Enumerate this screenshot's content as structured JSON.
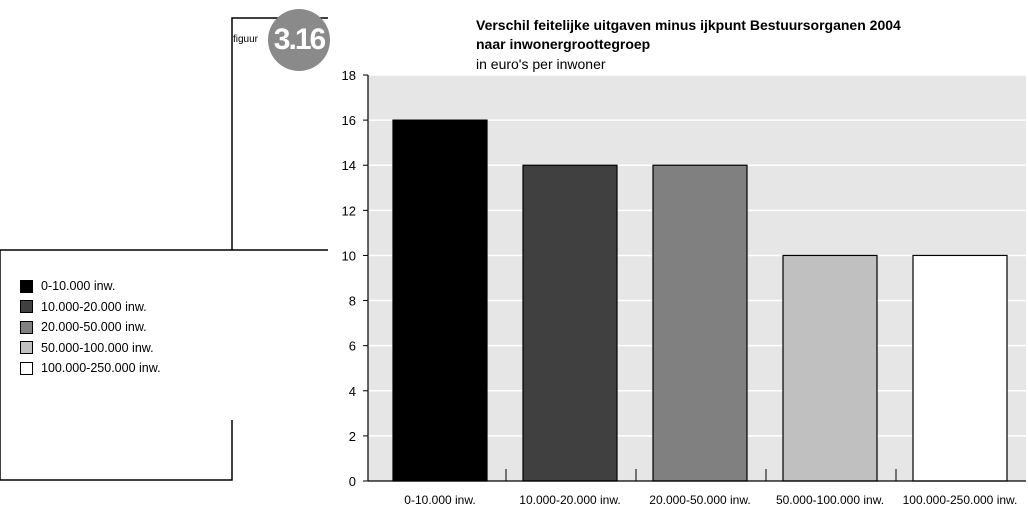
{
  "figure": {
    "label": "figuur",
    "number": "3.16",
    "title_line1": "Verschil feitelijke uitgaven minus ijkpunt Bestuursorganen 2004",
    "title_line2": "naar inwonergrootte­groep",
    "subtitle": "in euro's per inwoner"
  },
  "colors": {
    "plot_background": "#e6e6e6",
    "badge": "#8a8a8a",
    "bars": [
      "#000000",
      "#404040",
      "#808080",
      "#c0c0c0",
      "#ffffff"
    ]
  },
  "chart_data": {
    "type": "bar",
    "title": "Verschil feitelijke uitgaven minus ijkpunt Bestuursorganen 2004 naar inwonergrootte­groep",
    "subtitle": "in euro's per inwoner",
    "categories": [
      "0-10.000 inw.",
      "10.000-20.000 inw.",
      "20.000-50.000 inw.",
      "50.000-100.000 inw.",
      "100.000-250.000 inw."
    ],
    "values": [
      16,
      14,
      14,
      10,
      10
    ],
    "ylim": [
      0,
      18
    ],
    "yticks": [
      0,
      2,
      4,
      6,
      8,
      10,
      12,
      14,
      16,
      18
    ],
    "grid": true,
    "legend": {
      "placement": "left",
      "entries": [
        "0-10.000 inw.",
        "10.000-20.000 inw.",
        "20.000-50.000 inw.",
        "50.000-100.000 inw.",
        "100.000-250.000 inw."
      ]
    }
  }
}
